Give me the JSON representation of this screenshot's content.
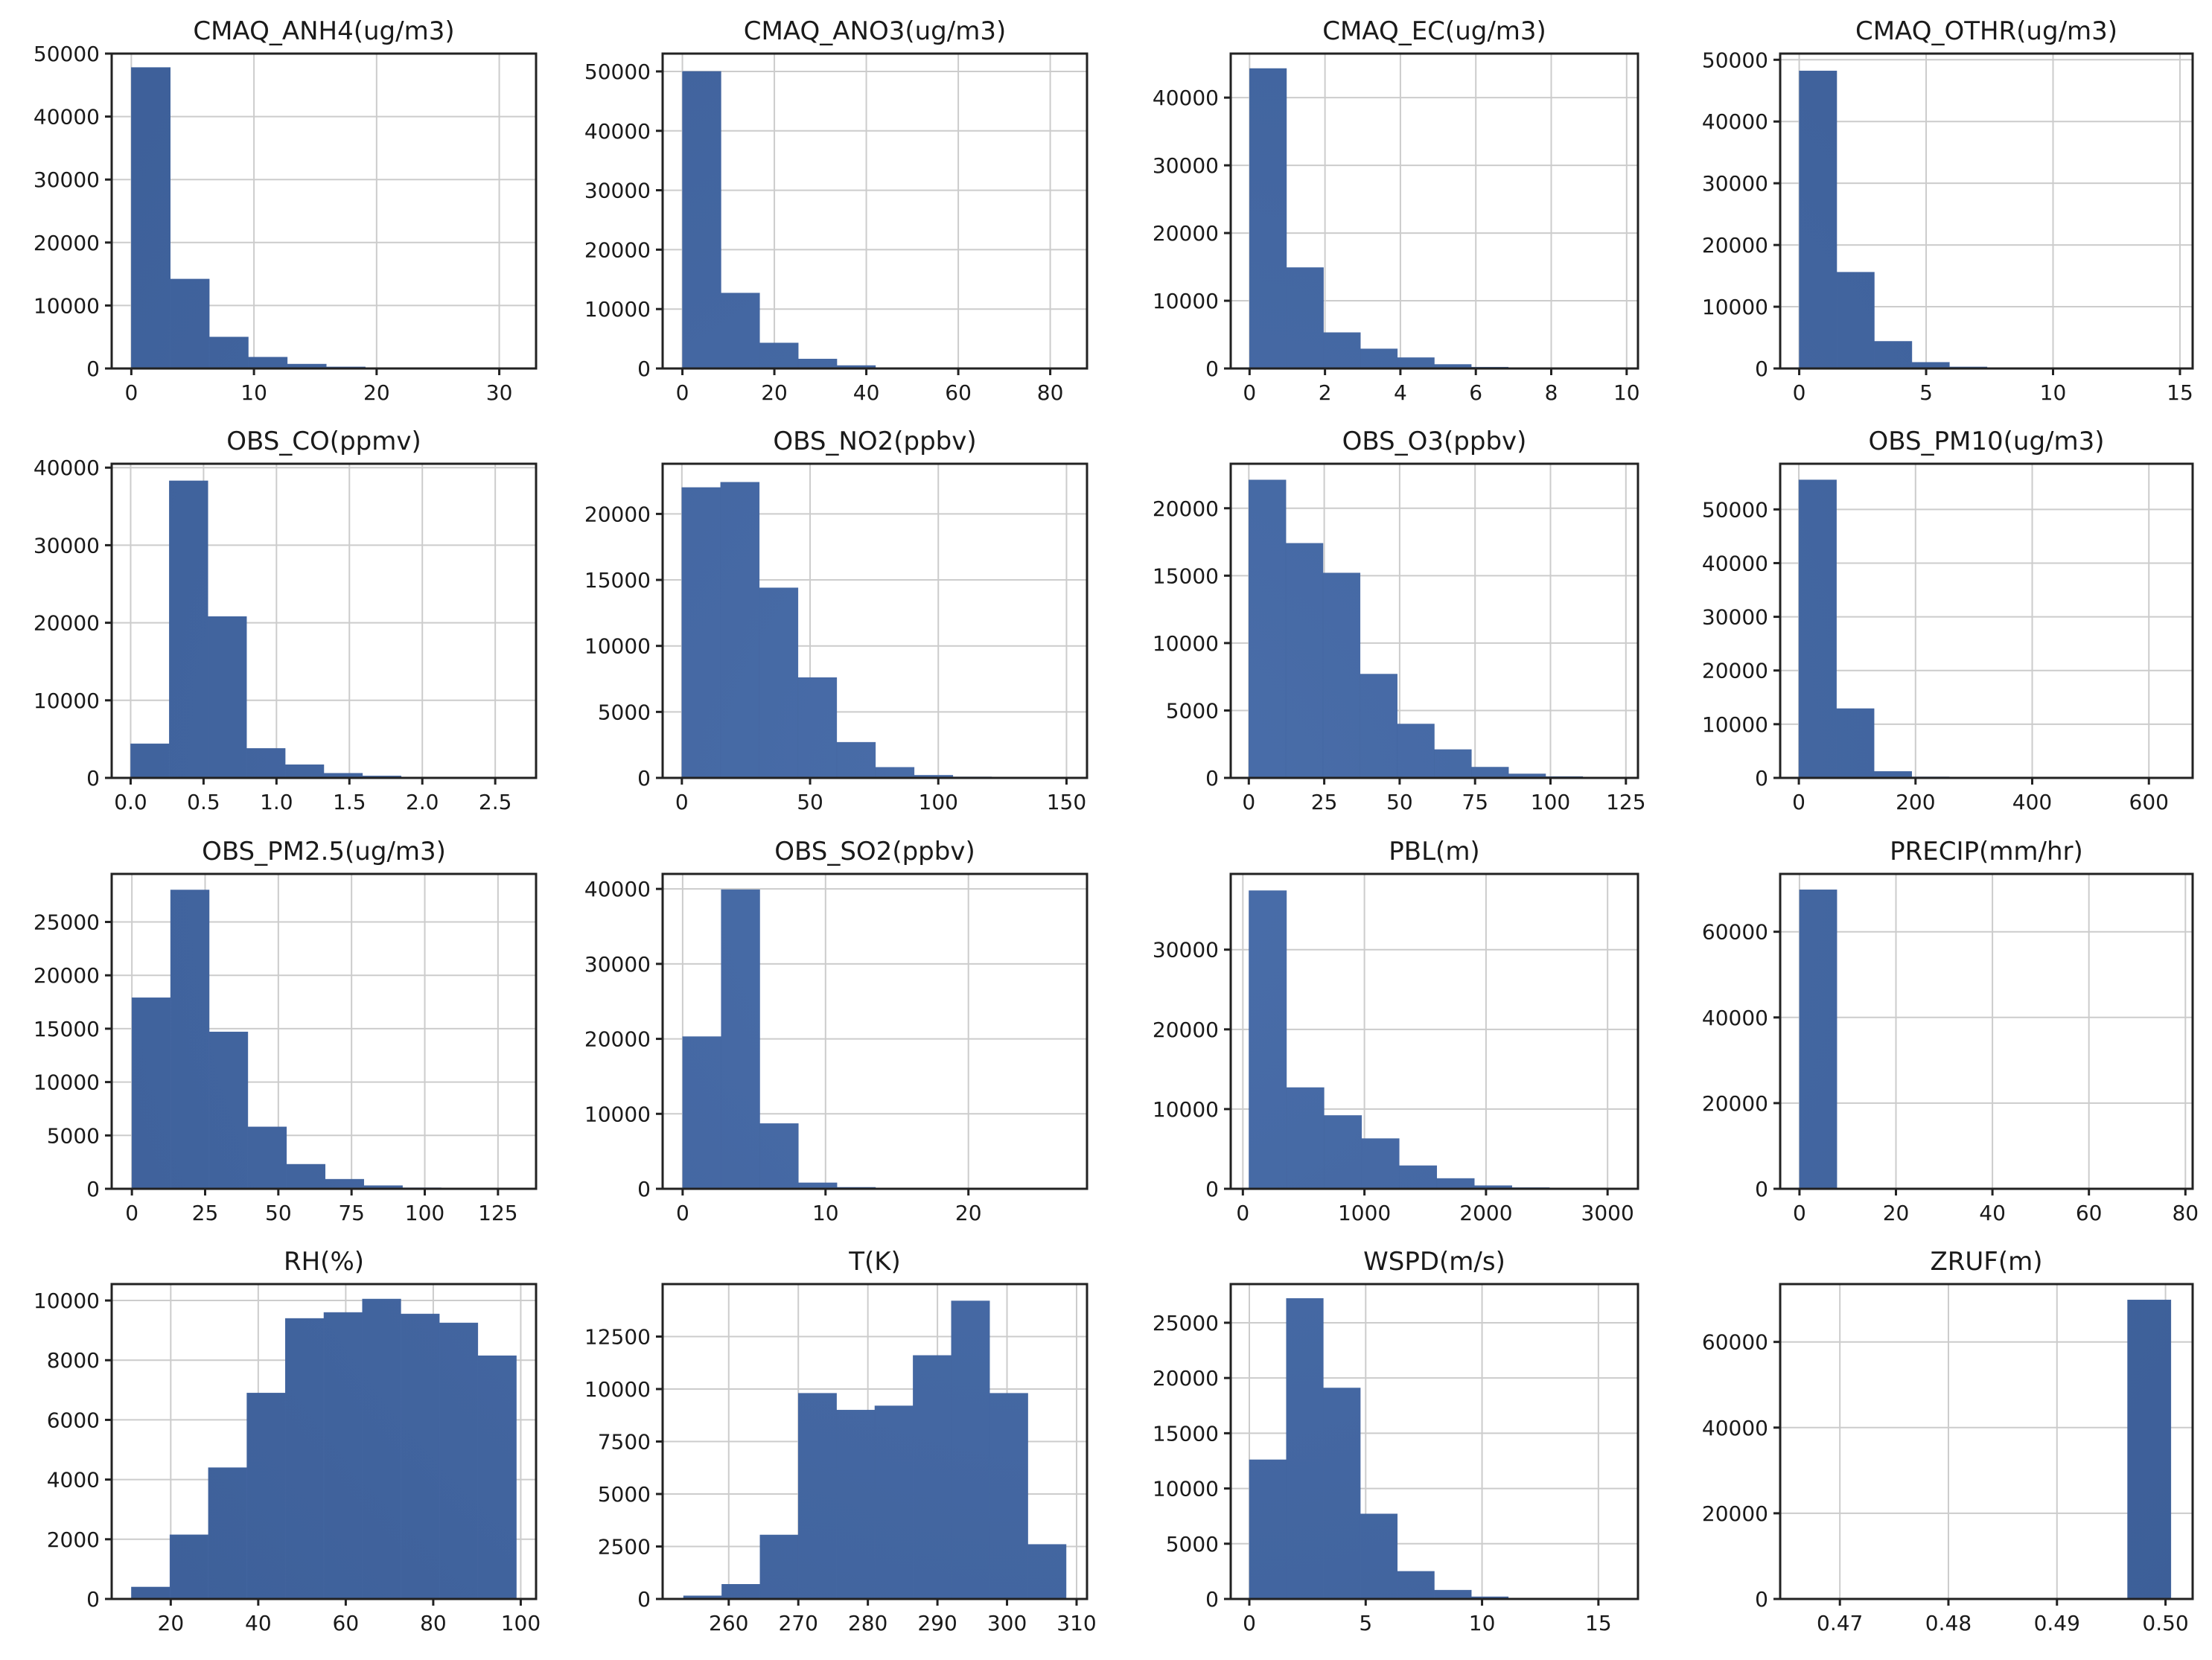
{
  "colors": {
    "bar": "#4466a0",
    "grid": "#cccccc",
    "axis": "#222222"
  },
  "chart_data": [
    {
      "type": "bar",
      "title": "CMAQ_ANH4(ug/m3)",
      "xlim": [
        -1.6,
        33
      ],
      "ylim": [
        0,
        50000
      ],
      "xticks": [
        0,
        10,
        20,
        30
      ],
      "xtick_labels": [
        "0",
        "10",
        "20",
        "30"
      ],
      "yticks": [
        0,
        10000,
        20000,
        30000,
        40000,
        50000
      ],
      "ytick_labels": [
        "0",
        "10000",
        "20000",
        "30000",
        "40000",
        "50000"
      ],
      "bin_edges": [
        0,
        3.18,
        6.36,
        9.54,
        12.72,
        15.9,
        19.08,
        22.26,
        25.44,
        28.62,
        31.8
      ],
      "values": [
        47800,
        14200,
        5000,
        1800,
        700,
        250,
        100,
        50,
        20,
        10
      ]
    },
    {
      "type": "bar",
      "title": "CMAQ_ANO3(ug/m3)",
      "xlim": [
        -4.3,
        88
      ],
      "ylim": [
        0,
        53000
      ],
      "xticks": [
        0,
        20,
        40,
        60,
        80
      ],
      "xtick_labels": [
        "0",
        "20",
        "40",
        "60",
        "80"
      ],
      "yticks": [
        0,
        10000,
        20000,
        30000,
        40000,
        50000
      ],
      "ytick_labels": [
        "0",
        "10000",
        "20000",
        "30000",
        "40000",
        "50000"
      ],
      "bin_edges": [
        0,
        8.4,
        16.8,
        25.2,
        33.6,
        42,
        50.4,
        58.8,
        67.2,
        75.6,
        84
      ],
      "values": [
        50000,
        12700,
        4300,
        1600,
        500,
        150,
        60,
        30,
        15,
        5
      ]
    },
    {
      "type": "bar",
      "title": "CMAQ_EC(ug/m3)",
      "xlim": [
        -0.5,
        10.3
      ],
      "ylim": [
        0,
        46500
      ],
      "xticks": [
        0,
        2,
        4,
        6,
        8,
        10
      ],
      "xtick_labels": [
        "0",
        "2",
        "4",
        "6",
        "8",
        "10"
      ],
      "yticks": [
        0,
        10000,
        20000,
        30000,
        40000
      ],
      "ytick_labels": [
        "0",
        "10000",
        "20000",
        "30000",
        "40000"
      ],
      "bin_edges": [
        0,
        0.98,
        1.96,
        2.94,
        3.92,
        4.9,
        5.88,
        6.86,
        7.84,
        8.82,
        9.8
      ],
      "values": [
        44300,
        14900,
        5300,
        2900,
        1600,
        600,
        200,
        80,
        40,
        20
      ]
    },
    {
      "type": "bar",
      "title": "CMAQ_OTHR(ug/m3)",
      "xlim": [
        -0.75,
        15.5
      ],
      "ylim": [
        0,
        51000
      ],
      "xticks": [
        0,
        5,
        10,
        15
      ],
      "xtick_labels": [
        "0",
        "5",
        "10",
        "15"
      ],
      "yticks": [
        0,
        10000,
        20000,
        30000,
        40000,
        50000
      ],
      "ytick_labels": [
        "0",
        "10000",
        "20000",
        "30000",
        "40000",
        "50000"
      ],
      "bin_edges": [
        0,
        1.48,
        2.96,
        4.44,
        5.92,
        7.4,
        8.88,
        10.36,
        11.84,
        13.32,
        14.8
      ],
      "values": [
        48200,
        15600,
        4400,
        1000,
        250,
        80,
        30,
        15,
        5,
        5
      ]
    },
    {
      "type": "bar",
      "title": "OBS_CO(ppmv)",
      "xlim": [
        -0.13,
        2.78
      ],
      "ylim": [
        0,
        40500
      ],
      "xticks": [
        0,
        0.5,
        1,
        1.5,
        2,
        2.5
      ],
      "xtick_labels": [
        "0.0",
        "0.5",
        "1.0",
        "1.5",
        "2.0",
        "2.5"
      ],
      "yticks": [
        0,
        10000,
        20000,
        30000,
        40000
      ],
      "ytick_labels": [
        "0",
        "10000",
        "20000",
        "30000",
        "40000"
      ],
      "bin_edges": [
        0,
        0.265,
        0.53,
        0.795,
        1.06,
        1.325,
        1.59,
        1.855,
        2.12,
        2.385,
        2.65
      ],
      "values": [
        4400,
        38300,
        20800,
        3800,
        1700,
        600,
        250,
        100,
        50,
        20
      ]
    },
    {
      "type": "bar",
      "title": "OBS_NO2(ppbv)",
      "xlim": [
        -7.5,
        158
      ],
      "ylim": [
        0,
        23800
      ],
      "xticks": [
        0,
        50,
        100,
        150
      ],
      "xtick_labels": [
        "0",
        "50",
        "100",
        "150"
      ],
      "yticks": [
        0,
        5000,
        10000,
        15000,
        20000
      ],
      "ytick_labels": [
        "0",
        "5000",
        "10000",
        "15000",
        "20000"
      ],
      "bin_edges": [
        0,
        15.1,
        30.2,
        45.3,
        60.4,
        75.5,
        90.6,
        105.7,
        120.8,
        135.9,
        151
      ],
      "values": [
        22000,
        22400,
        14400,
        7600,
        2700,
        800,
        200,
        80,
        30,
        10
      ]
    },
    {
      "type": "bar",
      "title": "OBS_O3(ppbv)",
      "xlim": [
        -6,
        129
      ],
      "ylim": [
        0,
        23300
      ],
      "xticks": [
        0,
        25,
        50,
        75,
        100,
        125
      ],
      "xtick_labels": [
        "0",
        "25",
        "50",
        "75",
        "100",
        "125"
      ],
      "yticks": [
        0,
        5000,
        10000,
        15000,
        20000
      ],
      "ytick_labels": [
        "0",
        "5000",
        "10000",
        "15000",
        "20000"
      ],
      "bin_edges": [
        0,
        12.3,
        24.6,
        36.9,
        49.2,
        61.5,
        73.8,
        86.1,
        98.4,
        110.7,
        123
      ],
      "values": [
        22100,
        17400,
        15200,
        7700,
        4000,
        2100,
        800,
        300,
        100,
        30
      ]
    },
    {
      "type": "bar",
      "title": "OBS_PM10(ug/m3)",
      "xlim": [
        -32,
        675
      ],
      "ylim": [
        0,
        58500
      ],
      "xticks": [
        0,
        200,
        400,
        600
      ],
      "xtick_labels": [
        "0",
        "200",
        "400",
        "600"
      ],
      "yticks": [
        0,
        10000,
        20000,
        30000,
        40000,
        50000
      ],
      "ytick_labels": [
        "0",
        "10000",
        "20000",
        "30000",
        "40000",
        "50000"
      ],
      "bin_edges": [
        0,
        64.5,
        129,
        193.5,
        258,
        322.5,
        387,
        451.5,
        516,
        580.5,
        645
      ],
      "values": [
        55500,
        12900,
        1200,
        200,
        60,
        20,
        10,
        5,
        5,
        5
      ]
    },
    {
      "type": "bar",
      "title": "OBS_PM2.5(ug/m3)",
      "xlim": [
        -6.9,
        138
      ],
      "ylim": [
        0,
        29500
      ],
      "xticks": [
        0,
        25,
        50,
        75,
        100,
        125
      ],
      "xtick_labels": [
        "0",
        "25",
        "50",
        "75",
        "100",
        "125"
      ],
      "yticks": [
        0,
        5000,
        10000,
        15000,
        20000,
        25000
      ],
      "ytick_labels": [
        "0",
        "5000",
        "10000",
        "15000",
        "20000",
        "25000"
      ],
      "bin_edges": [
        0,
        13.2,
        26.4,
        39.6,
        52.8,
        66,
        79.2,
        92.4,
        105.6,
        118.8,
        132
      ],
      "values": [
        17900,
        28000,
        14700,
        5800,
        2300,
        900,
        300,
        100,
        40,
        10
      ]
    },
    {
      "type": "bar",
      "title": "OBS_SO2(ppbv)",
      "xlim": [
        -1.4,
        28.3
      ],
      "ylim": [
        0,
        42000
      ],
      "xticks": [
        0,
        10,
        20
      ],
      "xtick_labels": [
        "0",
        "10",
        "20"
      ],
      "yticks": [
        0,
        10000,
        20000,
        30000,
        40000
      ],
      "ytick_labels": [
        "0",
        "10000",
        "20000",
        "30000",
        "40000"
      ],
      "bin_edges": [
        0,
        2.7,
        5.4,
        8.1,
        10.8,
        13.5,
        16.2,
        18.9,
        21.6,
        24.3,
        27
      ],
      "values": [
        20300,
        39900,
        8700,
        800,
        200,
        80,
        30,
        10,
        5,
        5
      ]
    },
    {
      "type": "bar",
      "title": "PBL(m)",
      "xlim": [
        -100,
        3250
      ],
      "ylim": [
        0,
        39500
      ],
      "xticks": [
        0,
        1000,
        2000,
        3000
      ],
      "xtick_labels": [
        "0",
        "1000",
        "2000",
        "3000"
      ],
      "yticks": [
        0,
        10000,
        20000,
        30000
      ],
      "ytick_labels": [
        "0",
        "10000",
        "20000",
        "30000"
      ],
      "bin_edges": [
        50,
        359,
        668,
        977,
        1286,
        1595,
        1904,
        2213,
        2522,
        2831,
        3140
      ],
      "values": [
        37400,
        12700,
        9200,
        6300,
        2900,
        1300,
        400,
        150,
        60,
        20
      ]
    },
    {
      "type": "bar",
      "title": "PRECIP(mm/hr)",
      "xlim": [
        -4,
        81.5
      ],
      "ylim": [
        0,
        73500
      ],
      "xticks": [
        0,
        20,
        40,
        60,
        80
      ],
      "xtick_labels": [
        "0",
        "20",
        "40",
        "60",
        "80"
      ],
      "yticks": [
        0,
        20000,
        40000,
        60000
      ],
      "ytick_labels": [
        "0",
        "20000",
        "40000",
        "60000"
      ],
      "bin_edges": [
        0,
        7.75,
        15.5,
        23.25,
        31,
        38.75,
        46.5,
        54.25,
        62,
        69.75,
        77.5
      ],
      "values": [
        69800,
        20,
        10,
        5,
        5,
        0,
        0,
        0,
        0,
        2
      ]
    },
    {
      "type": "bar",
      "title": "RH(%)",
      "xlim": [
        6.5,
        103.5
      ],
      "ylim": [
        0,
        10550
      ],
      "xticks": [
        20,
        40,
        60,
        80,
        100
      ],
      "xtick_labels": [
        "20",
        "40",
        "60",
        "80",
        "100"
      ],
      "yticks": [
        0,
        2000,
        4000,
        6000,
        8000,
        10000
      ],
      "ytick_labels": [
        "0",
        "2000",
        "4000",
        "6000",
        "8000",
        "10000"
      ],
      "bin_edges": [
        11,
        19.8,
        28.6,
        37.4,
        46.2,
        55,
        63.8,
        72.6,
        81.4,
        90.2,
        99
      ],
      "values": [
        400,
        2150,
        4400,
        6900,
        9400,
        9600,
        10050,
        9550,
        9250,
        8150
      ]
    },
    {
      "type": "bar",
      "title": "T(K)",
      "xlim": [
        250.5,
        311.5
      ],
      "ylim": [
        0,
        15000
      ],
      "xticks": [
        260,
        270,
        280,
        290,
        300,
        310
      ],
      "xtick_labels": [
        "260",
        "270",
        "280",
        "290",
        "300",
        "310"
      ],
      "yticks": [
        0,
        2500,
        5000,
        7500,
        10000,
        12500
      ],
      "ytick_labels": [
        "0",
        "2500",
        "5000",
        "7500",
        "10000",
        "12500"
      ],
      "bin_edges": [
        253.5,
        259,
        264.5,
        270,
        275.5,
        281,
        286.5,
        292,
        297.5,
        303,
        308.5
      ],
      "values": [
        150,
        700,
        3050,
        9800,
        9000,
        9200,
        11600,
        14200,
        9800,
        2600
      ]
    },
    {
      "type": "bar",
      "title": "WSPD(m/s)",
      "xlim": [
        -0.8,
        16.7
      ],
      "ylim": [
        0,
        28500
      ],
      "xticks": [
        0,
        5,
        10,
        15
      ],
      "xtick_labels": [
        "0",
        "5",
        "10",
        "15"
      ],
      "yticks": [
        0,
        5000,
        10000,
        15000,
        20000,
        25000
      ],
      "ytick_labels": [
        "0",
        "5000",
        "10000",
        "15000",
        "20000",
        "25000"
      ],
      "bin_edges": [
        0,
        1.59,
        3.18,
        4.77,
        6.36,
        7.95,
        9.54,
        11.13,
        12.72,
        14.31,
        15.9
      ],
      "values": [
        12600,
        27200,
        19100,
        7700,
        2500,
        800,
        200,
        60,
        20,
        5
      ]
    },
    {
      "type": "bar",
      "title": "ZRUF(m)",
      "xlim": [
        0.4645,
        0.5025
      ],
      "ylim": [
        0,
        73500
      ],
      "xticks": [
        0.47,
        0.48,
        0.49,
        0.5
      ],
      "xtick_labels": [
        "0.47",
        "0.48",
        "0.49",
        "0.50"
      ],
      "yticks": [
        0,
        20000,
        40000,
        60000
      ],
      "ytick_labels": [
        "0",
        "20000",
        "40000",
        "60000"
      ],
      "bin_edges": [
        0.4965,
        0.5005
      ],
      "values": [
        69800
      ]
    }
  ]
}
